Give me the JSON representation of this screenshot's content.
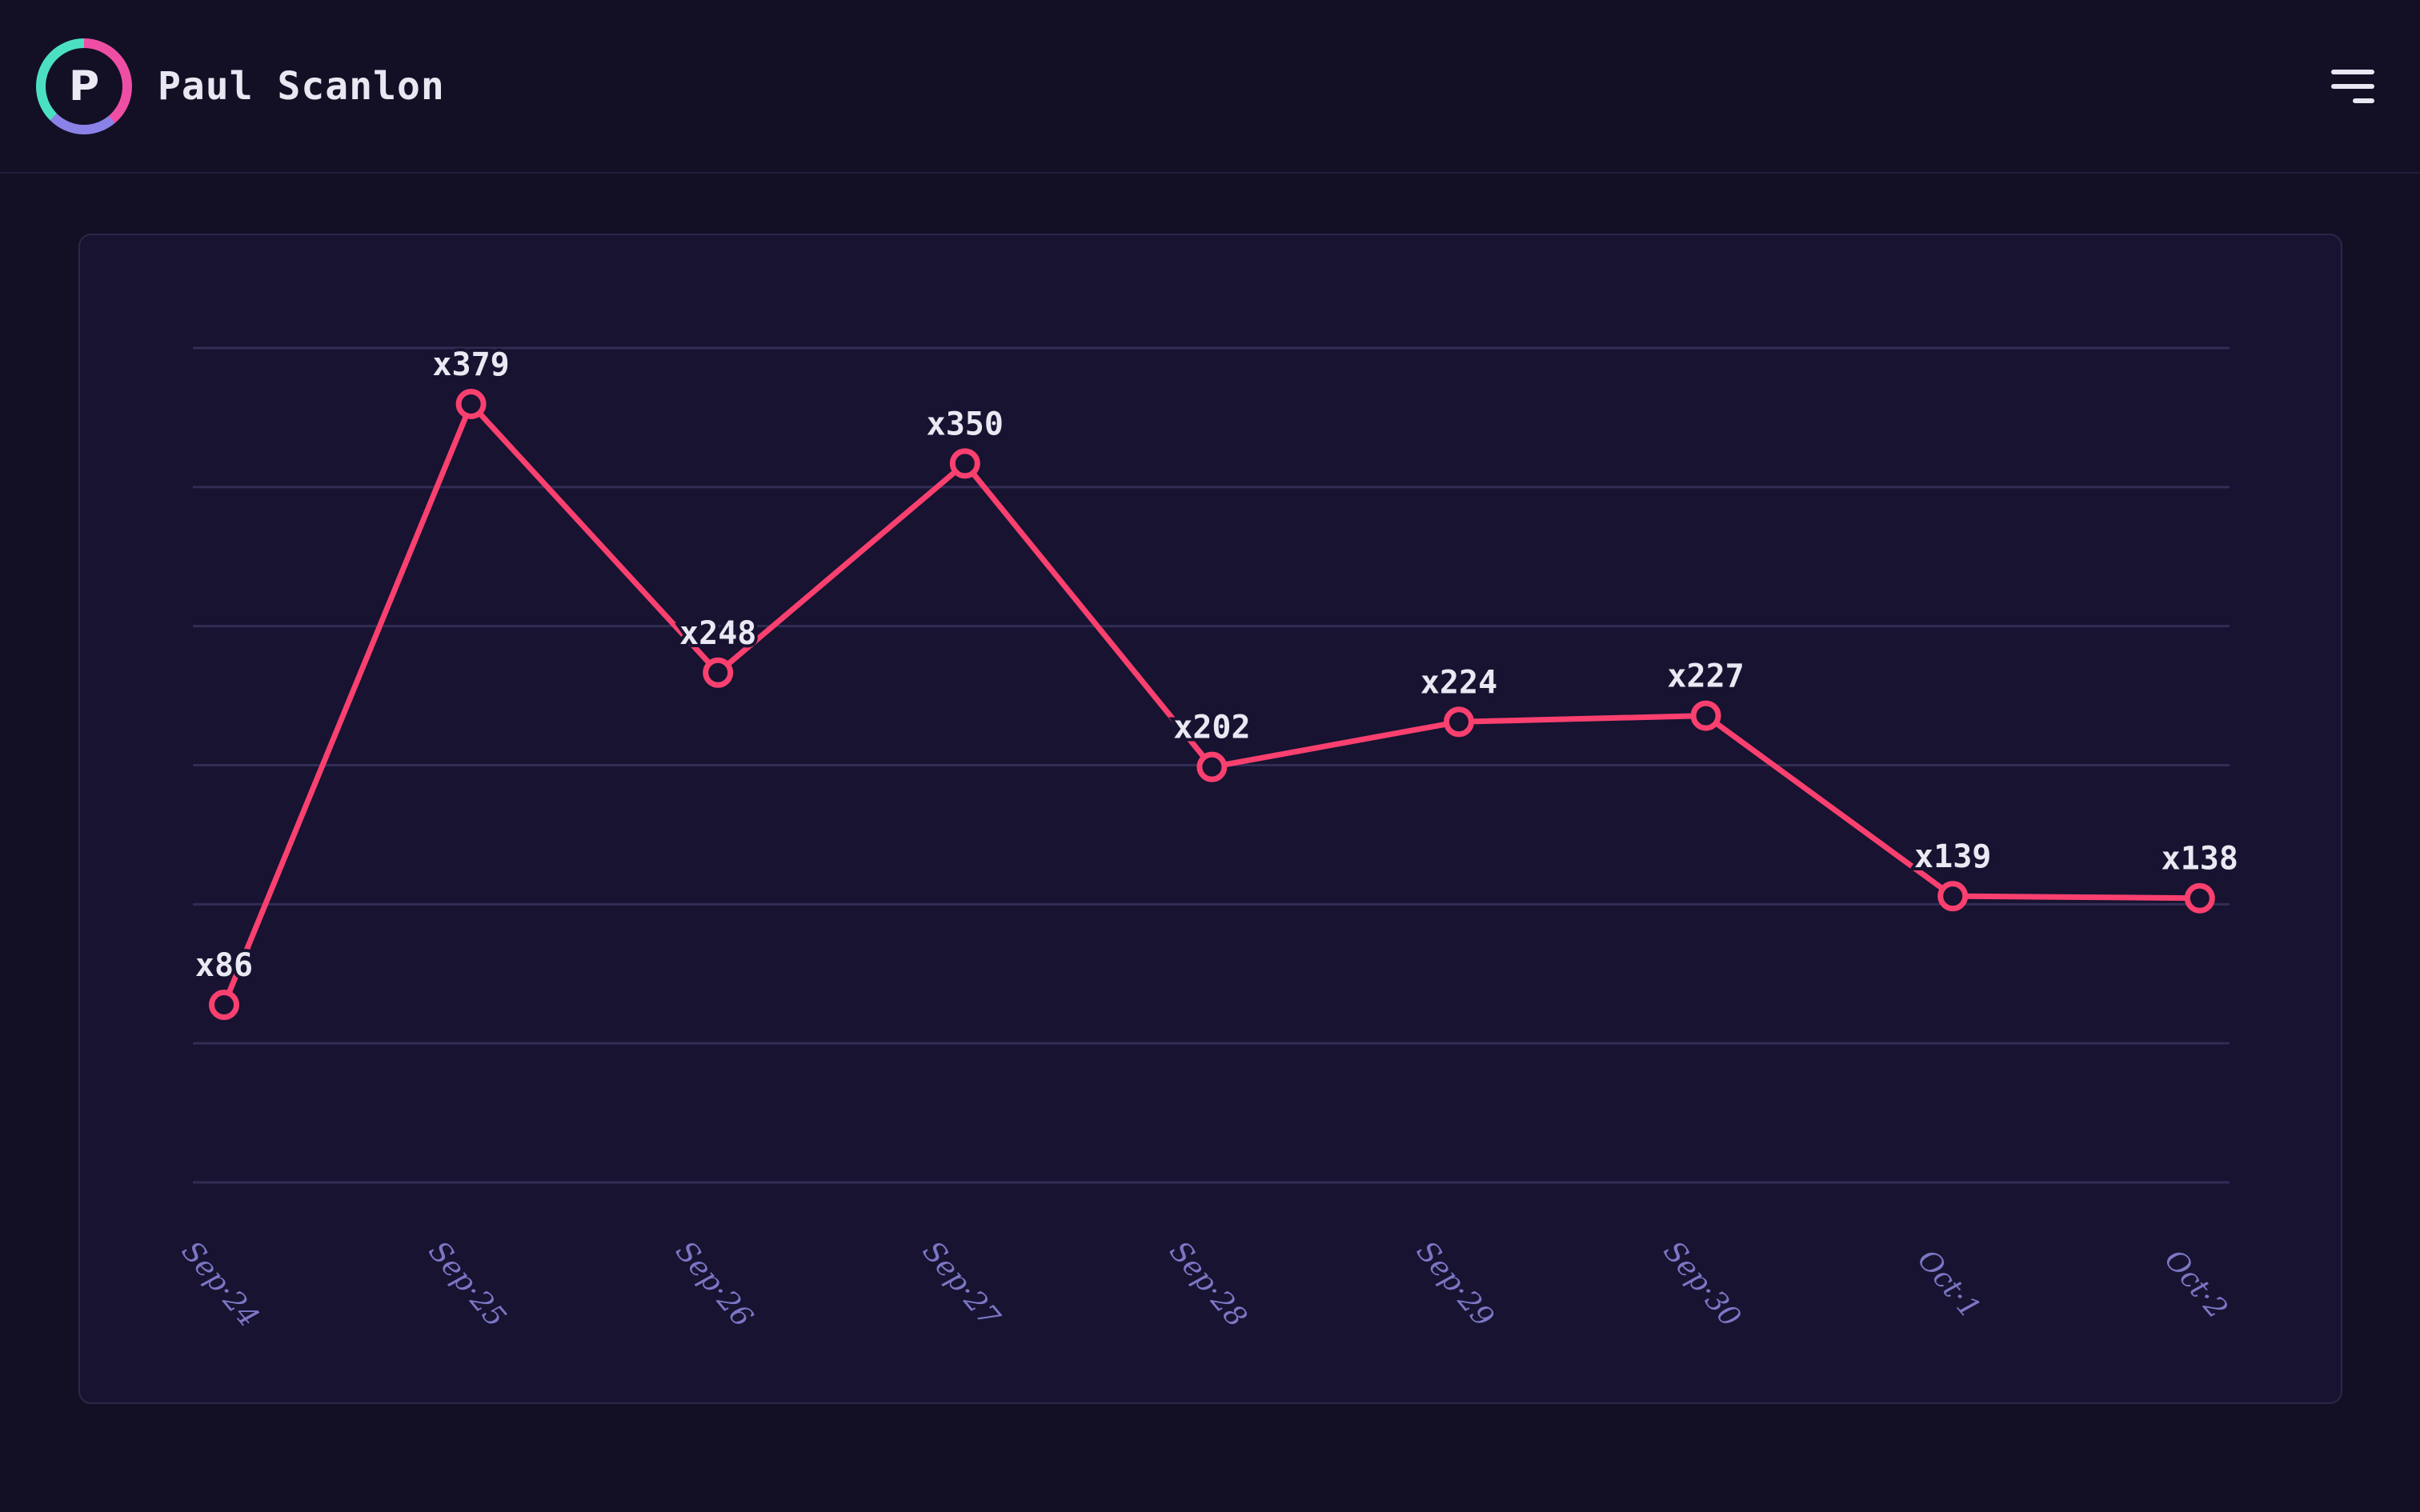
{
  "header": {
    "user_name": "Paul Scanlon",
    "avatar_initial": "P"
  },
  "icons": {
    "menu": "hamburger-menu",
    "avatar_ring": "gradient-ring"
  },
  "colors": {
    "page_background": "#131026",
    "card_background": "#171331",
    "card_border": "#2b2749",
    "grid_line": "#312d55",
    "series_pink": "#f9406f",
    "data_label_text": "#e9e9f3",
    "axis_label_text": "#7c76c4",
    "avatar_gradient": [
      "#ee4fa4",
      "#8b82e8",
      "#4ce0c3"
    ],
    "header_text": "#e9e8f2"
  },
  "chart_data": {
    "type": "line",
    "categories": [
      "Sep·24",
      "Sep·25",
      "Sep·26",
      "Sep·27",
      "Sep·28",
      "Sep·29",
      "Sep·30",
      "Oct·1",
      "Oct·2"
    ],
    "values": [
      86,
      379,
      248,
      350,
      202,
      224,
      227,
      139,
      138
    ],
    "point_labels": [
      "x86",
      "x379",
      "x248",
      "x350",
      "x202",
      "x224",
      "x227",
      "x139",
      "x138"
    ],
    "series_name": "",
    "title": "",
    "xlabel": "",
    "ylabel": "",
    "y_axis_tick_labels_visible": false,
    "grid": "horizontal",
    "grid_line_count": 7,
    "legend": "none",
    "marker": "open-circle",
    "x_label_rotation_deg": 50
  }
}
